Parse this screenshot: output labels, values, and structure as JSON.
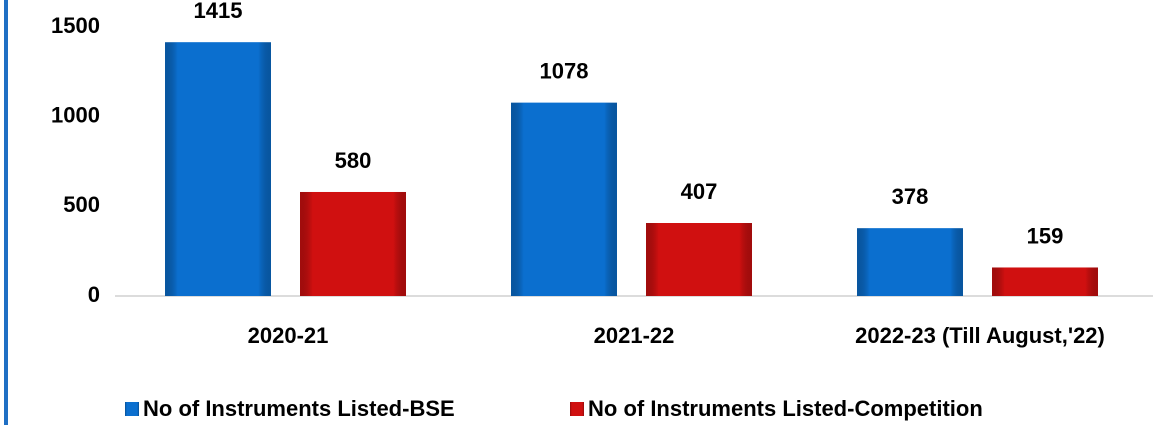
{
  "chart_data": {
    "type": "bar",
    "categories": [
      "2020-21",
      "2021-22",
      "2022-23 (Till August,'22)"
    ],
    "series": [
      {
        "name": "No of Instruments Listed-BSE",
        "color": "#0b6fcf",
        "values": [
          1415,
          1078,
          378
        ]
      },
      {
        "name": "No of Instruments Listed-Competition",
        "color": "#d01010",
        "values": [
          580,
          407,
          159
        ]
      }
    ],
    "ylim": [
      0,
      1500
    ],
    "yticks": [
      0,
      500,
      1000,
      1500
    ],
    "grid": false,
    "legend": "bottom"
  }
}
